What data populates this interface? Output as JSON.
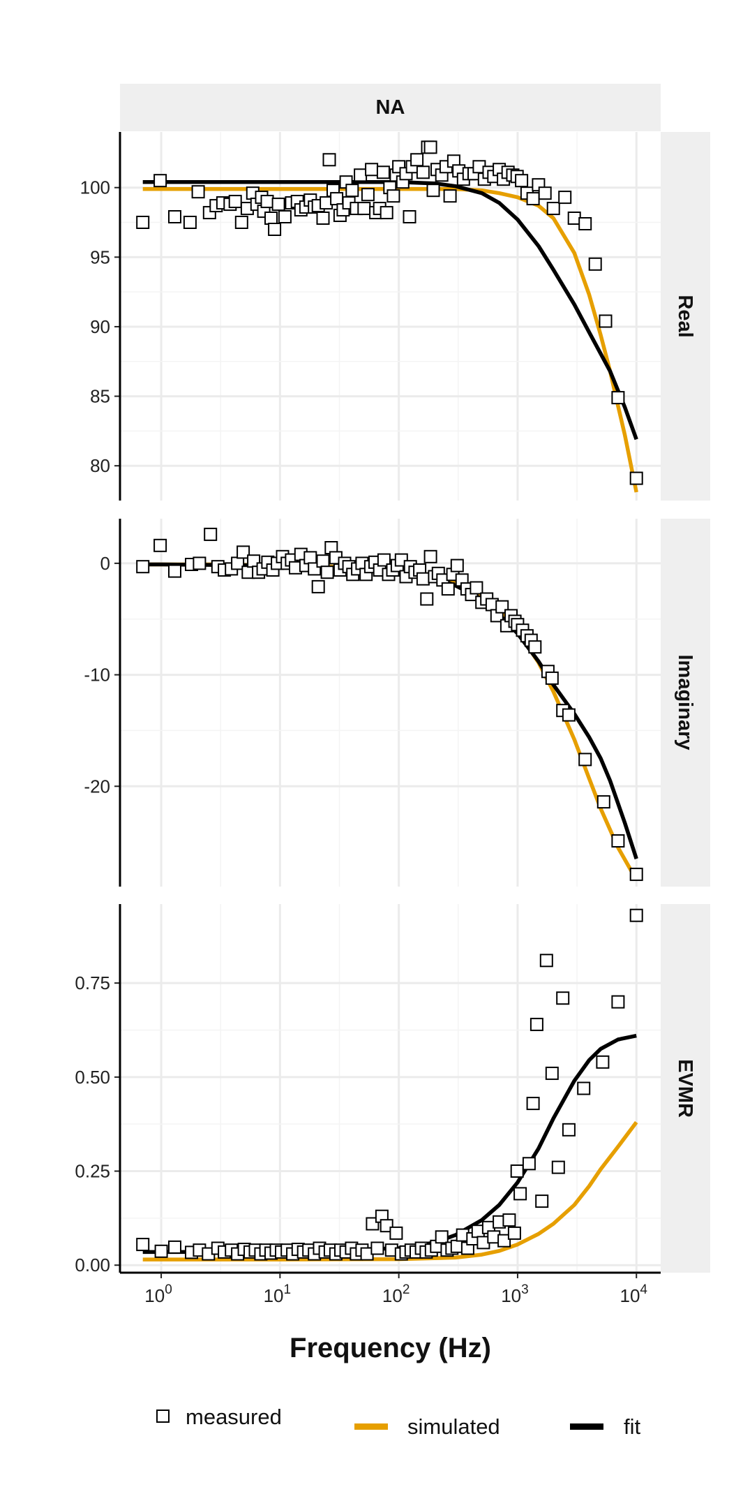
{
  "chart_data": {
    "type": "line",
    "strip_top": "NA",
    "xlabel": "Frequency (Hz)",
    "x_scale": "log10",
    "xlim": [
      0.45,
      16000
    ],
    "x_ticks": [
      {
        "value": 1,
        "base": "10",
        "exp": "0"
      },
      {
        "value": 10,
        "base": "10",
        "exp": "1"
      },
      {
        "value": 100,
        "base": "10",
        "exp": "2"
      },
      {
        "value": 1000,
        "base": "10",
        "exp": "3"
      },
      {
        "value": 10000,
        "base": "10",
        "exp": "4"
      }
    ],
    "grid": true,
    "legend_position": "bottom",
    "legend": [
      {
        "key": "measured",
        "label": "measured",
        "type": "point"
      },
      {
        "key": "simulated",
        "label": "simulated",
        "type": "line"
      },
      {
        "key": "fit",
        "label": "fit",
        "type": "line"
      }
    ],
    "colors": {
      "simulated": "#E69F00",
      "fit": "#000000",
      "measured_fill": "#ffffff",
      "measured_stroke": "#000000",
      "strip_bg": "#EFEFEF",
      "grid": "#EBEBEB"
    },
    "panels": [
      {
        "label": "Real",
        "ylim": [
          77.5,
          104
        ],
        "y_ticks": [
          {
            "value": 80,
            "label": "80"
          },
          {
            "value": 85,
            "label": "85"
          },
          {
            "value": 90,
            "label": "90"
          },
          {
            "value": 95,
            "label": "95"
          },
          {
            "value": 100,
            "label": "100"
          }
        ],
        "series": [
          {
            "key": "simulated",
            "x": [
              0.7,
              1,
              10,
              100,
              300,
              500,
              700,
              1000,
              1500,
              2000,
              3000,
              4000,
              5000,
              6000,
              7000,
              8000,
              10000
            ],
            "y": [
              99.9,
              99.9,
              99.9,
              99.9,
              99.9,
              99.8,
              99.6,
              99.3,
              98.7,
              97.8,
              95.3,
              92.3,
              89.4,
              86.8,
              84.3,
              82.2,
              78.1
            ]
          },
          {
            "key": "fit",
            "x": [
              0.7,
              1,
              10,
              100,
              200,
              300,
              500,
              700,
              1000,
              1500,
              2000,
              3000,
              4000,
              6000,
              8000,
              10000
            ],
            "y": [
              100.4,
              100.4,
              100.4,
              100.4,
              100.3,
              100.1,
              99.6,
              98.9,
              97.7,
              95.8,
              94.1,
              91.6,
              89.6,
              86.8,
              84.2,
              81.9
            ]
          }
        ],
        "measured": {
          "x": [
            0.7,
            0.98,
            1.3,
            1.75,
            2.05,
            2.55,
            2.9,
            3.3,
            3.8,
            4.2,
            4.75,
            5.3,
            5.9,
            6.4,
            7.0,
            7.3,
            7.8,
            8.4,
            9.0,
            9.7,
            11.0,
            12.5,
            14.0,
            15.0,
            16.5,
            18.0,
            19.5,
            21.0,
            23.0,
            24.5,
            26.0,
            28.0,
            30.0,
            32.0,
            34.0,
            36.0,
            38.0,
            40.5,
            44.0,
            47.5,
            51.0,
            55.0,
            59.0,
            64.0,
            69.0,
            74.0,
            79.0,
            84.0,
            90.0,
            95.0,
            100.0,
            108.0,
            115.0,
            123.0,
            130.0,
            142.0,
            160.0,
            175.0,
            185.0,
            195.0,
            210.0,
            230.0,
            250.0,
            270.0,
            290.0,
            320.0,
            350.0,
            390.0,
            430.0,
            475.0,
            525.0,
            575.0,
            630.0,
            700.0,
            760.0,
            830.0,
            910.0,
            990.0,
            1080.0,
            1200.0,
            1350.0,
            1500.0,
            1700.0,
            2000.0,
            2500.0,
            3000.0,
            3700.0,
            4500.0,
            5500.0,
            7000.0,
            10000.0
          ],
          "y": [
            97.5,
            100.5,
            97.9,
            97.5,
            99.7,
            98.2,
            98.7,
            98.9,
            98.8,
            99.0,
            97.5,
            98.5,
            99.6,
            98.8,
            99.3,
            98.3,
            99.0,
            97.8,
            97.0,
            98.8,
            97.9,
            98.9,
            99.0,
            98.4,
            98.6,
            99.1,
            98.6,
            98.7,
            97.8,
            98.9,
            102.0,
            99.8,
            99.2,
            98.0,
            98.4,
            100.4,
            98.9,
            99.8,
            98.5,
            100.9,
            98.5,
            99.5,
            101.3,
            98.2,
            98.5,
            101.1,
            98.2,
            100.0,
            99.4,
            100.9,
            101.5,
            100.4,
            101.0,
            97.9,
            101.5,
            102.0,
            101.1,
            102.9,
            102.9,
            99.8,
            101.3,
            100.9,
            101.5,
            99.4,
            101.9,
            101.2,
            100.6,
            101.0,
            101.0,
            101.5,
            100.6,
            101.1,
            100.8,
            101.3,
            100.6,
            101.1,
            100.9,
            100.8,
            100.5,
            99.6,
            99.2,
            100.2,
            99.6,
            98.5,
            99.3,
            97.8,
            97.4,
            94.5,
            90.4,
            84.9,
            79.1
          ]
        }
      },
      {
        "label": "Imaginary",
        "ylim": [
          -29,
          4
        ],
        "y_ticks": [
          {
            "value": -20,
            "label": "-20"
          },
          {
            "value": -10,
            "label": "-10"
          },
          {
            "value": 0,
            "label": "0"
          }
        ],
        "series": [
          {
            "key": "simulated",
            "x": [
              0.7,
              1,
              3,
              10,
              30,
              100,
              200,
              300,
              500,
              700,
              1000,
              1500,
              2000,
              3000,
              4000,
              5000,
              7000,
              10000
            ],
            "y": [
              -0.1,
              -0.1,
              -0.1,
              -0.2,
              -0.3,
              -0.6,
              -1.1,
              -1.7,
              -2.9,
              -4.2,
              -6.1,
              -8.9,
              -11.5,
              -15.8,
              -19.3,
              -22.0,
              -25.5,
              -28.4
            ]
          },
          {
            "key": "fit",
            "x": [
              0.7,
              1,
              10,
              100,
              200,
              300,
              500,
              700,
              1000,
              1500,
              2000,
              3000,
              4000,
              5000,
              6000,
              8000,
              10000
            ],
            "y": [
              -0.1,
              -0.1,
              -0.2,
              -0.7,
              -1.3,
              -2.0,
              -3.2,
              -4.6,
              -6.3,
              -8.8,
              -10.9,
              -13.5,
              -15.6,
              -17.5,
              -19.5,
              -23.3,
              -26.5
            ]
          }
        ],
        "measured": {
          "x": [
            0.7,
            0.98,
            1.3,
            1.8,
            2.1,
            2.6,
            3.0,
            3.4,
            3.9,
            4.4,
            4.9,
            5.4,
            6.0,
            6.6,
            7.2,
            7.9,
            8.7,
            9.5,
            10.5,
            11.5,
            12.5,
            13.5,
            15.0,
            16.5,
            18.0,
            19.5,
            21.0,
            23.0,
            25.0,
            27.0,
            29.5,
            32.0,
            35.0,
            38.0,
            41.0,
            45.0,
            49.0,
            53.0,
            58.0,
            63.0,
            69.0,
            75.0,
            82.0,
            89.0,
            97.0,
            105.0,
            115.0,
            125.0,
            137.0,
            150.0,
            160.0,
            172.0,
            185.0,
            200.0,
            215.0,
            235.0,
            260.0,
            285.0,
            310.0,
            340.0,
            375.0,
            410.0,
            450.0,
            500.0,
            550.0,
            610.0,
            670.0,
            740.0,
            810.0,
            880.0,
            950.0,
            1000.0,
            1100.0,
            1200.0,
            1300.0,
            1400.0,
            1800.0,
            1950.0,
            2400.0,
            2700.0,
            3700.0,
            5300.0,
            7000.0,
            10000.0
          ],
          "y": [
            -0.3,
            1.6,
            -0.7,
            -0.1,
            0.0,
            2.6,
            -0.3,
            -0.6,
            -0.5,
            0.0,
            1.0,
            -0.8,
            0.2,
            -0.8,
            -0.5,
            0.1,
            -0.6,
            0.0,
            0.6,
            0.0,
            0.3,
            -0.4,
            0.8,
            -0.2,
            0.5,
            -0.5,
            -2.1,
            0.2,
            -0.8,
            1.4,
            0.5,
            -0.6,
            0.0,
            -0.3,
            -1.0,
            -0.5,
            0.0,
            -1.0,
            -0.3,
            0.1,
            -0.6,
            0.3,
            -1.0,
            -0.6,
            -0.2,
            0.3,
            -1.2,
            -0.3,
            -0.8,
            -0.6,
            -1.4,
            -3.2,
            0.6,
            -1.2,
            -0.9,
            -1.5,
            -2.3,
            -1.0,
            -0.2,
            -1.5,
            -2.3,
            -2.8,
            -2.2,
            -3.5,
            -3.2,
            -3.7,
            -4.7,
            -3.9,
            -5.6,
            -4.7,
            -5.2,
            -5.5,
            -6.0,
            -6.5,
            -6.9,
            -7.5,
            -9.7,
            -10.3,
            -13.2,
            -13.6,
            -17.6,
            -21.4,
            -24.9,
            -27.9
          ]
        }
      },
      {
        "label": "EVMR",
        "ylim": [
          -0.02,
          0.96
        ],
        "y_ticks": [
          {
            "value": 0.0,
            "label": "0.00"
          },
          {
            "value": 0.25,
            "label": "0.25"
          },
          {
            "value": 0.5,
            "label": "0.50"
          },
          {
            "value": 0.75,
            "label": "0.75"
          }
        ],
        "series": [
          {
            "key": "simulated",
            "x": [
              0.7,
              1,
              10,
              100,
              300,
              500,
              700,
              1000,
              1500,
              2000,
              3000,
              4000,
              5000,
              7000,
              10000
            ],
            "y": [
              0.015,
              0.015,
              0.015,
              0.016,
              0.02,
              0.028,
              0.038,
              0.055,
              0.083,
              0.11,
              0.16,
              0.21,
              0.255,
              0.315,
              0.38
            ]
          },
          {
            "key": "fit",
            "x": [
              0.7,
              1,
              10,
              100,
              200,
              300,
              500,
              700,
              1000,
              1500,
              2000,
              3000,
              4000,
              5000,
              7000,
              10000
            ],
            "y": [
              0.035,
              0.035,
              0.036,
              0.045,
              0.06,
              0.08,
              0.12,
              0.16,
              0.22,
              0.31,
              0.39,
              0.49,
              0.545,
              0.575,
              0.6,
              0.61
            ]
          }
        ],
        "measured": {
          "x": [
            0.7,
            1.0,
            1.3,
            1.8,
            2.1,
            2.5,
            3.0,
            3.4,
            3.9,
            4.4,
            5.0,
            5.6,
            6.2,
            6.9,
            7.6,
            8.4,
            9.3,
            10.3,
            11.5,
            12.8,
            14.2,
            15.8,
            17.5,
            19.5,
            21.5,
            24.0,
            26.5,
            29.5,
            32.5,
            36.0,
            40.0,
            44.0,
            49.0,
            54.0,
            60.0,
            66.0,
            72.0,
            79.0,
            87.0,
            95.0,
            105.0,
            115.0,
            127.0,
            140.0,
            155.0,
            170.0,
            188.0,
            208.0,
            230.0,
            255.0,
            280.0,
            310.0,
            345.0,
            380.0,
            420.0,
            465.0,
            515.0,
            570.0,
            630.0,
            700.0,
            770.0,
            850.0,
            940.0,
            990.0,
            1050.0,
            1250.0,
            1350.0,
            1450.0,
            1600.0,
            1750.0,
            1950.0,
            2200.0,
            2400.0,
            2700.0,
            3600.0,
            5200.0,
            7000.0,
            10000.0
          ],
          "y": [
            0.055,
            0.037,
            0.048,
            0.034,
            0.04,
            0.03,
            0.045,
            0.035,
            0.04,
            0.03,
            0.042,
            0.035,
            0.04,
            0.03,
            0.04,
            0.032,
            0.04,
            0.035,
            0.04,
            0.03,
            0.042,
            0.035,
            0.04,
            0.03,
            0.045,
            0.035,
            0.04,
            0.03,
            0.04,
            0.035,
            0.045,
            0.03,
            0.04,
            0.03,
            0.11,
            0.045,
            0.13,
            0.105,
            0.04,
            0.085,
            0.03,
            0.035,
            0.04,
            0.035,
            0.045,
            0.035,
            0.04,
            0.05,
            0.075,
            0.04,
            0.045,
            0.05,
            0.08,
            0.045,
            0.07,
            0.09,
            0.06,
            0.1,
            0.075,
            0.115,
            0.065,
            0.12,
            0.085,
            0.25,
            0.19,
            0.27,
            0.43,
            0.64,
            0.17,
            0.81,
            0.51,
            0.26,
            0.71,
            0.36,
            0.47,
            0.54,
            0.7,
            0.93
          ]
        }
      }
    ]
  }
}
